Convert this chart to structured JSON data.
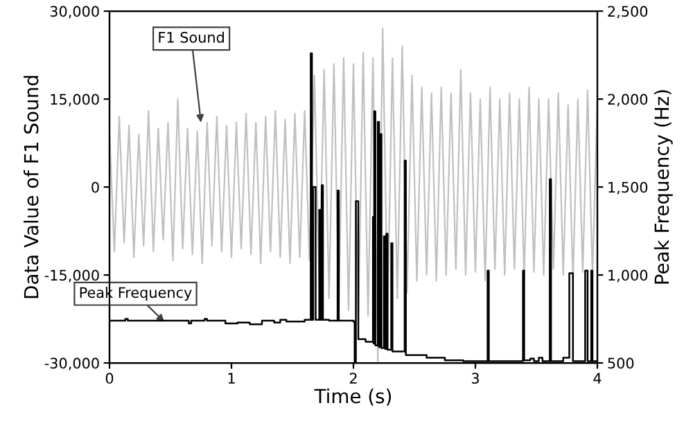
{
  "chart_data": {
    "type": "line",
    "xlabel": "Time (s)",
    "ylabel": "Data Value of F1 Sound",
    "y2label": "Peak Frequency (Hz)",
    "xlim": [
      0,
      4
    ],
    "xticks": [
      0,
      1,
      2,
      3,
      4
    ],
    "ylim": [
      -30000,
      30000
    ],
    "yticks": [
      {
        "value": -30000,
        "label": "-30,000"
      },
      {
        "value": -15000,
        "label": "-15,000"
      },
      0,
      {
        "value": 15000,
        "label": "15,000"
      },
      {
        "value": 30000,
        "label": "30,000"
      }
    ],
    "y2lim": [
      500,
      2500
    ],
    "y2ticks": [
      500,
      {
        "value": 1000,
        "label": "1,000"
      },
      {
        "value": 1500,
        "label": "1,500"
      },
      {
        "value": 2000,
        "label": "2,000"
      },
      {
        "value": 2500,
        "label": "2,500"
      }
    ],
    "grid": false,
    "legend": false,
    "series": [
      {
        "axis": "y",
        "color": "#c0c0c0",
        "x": [
          0,
          0.04,
          0.08,
          0.12,
          0.16,
          0.2,
          0.24,
          0.28,
          0.32,
          0.36,
          0.4,
          0.44,
          0.48,
          0.52,
          0.56,
          0.6,
          0.64,
          0.68,
          0.72,
          0.76,
          0.8,
          0.84,
          0.88,
          0.92,
          0.96,
          1.0,
          1.04,
          1.08,
          1.12,
          1.16,
          1.2,
          1.24,
          1.28,
          1.32,
          1.36,
          1.4,
          1.44,
          1.48,
          1.52,
          1.56,
          1.6,
          1.64,
          1.68,
          1.72,
          1.76,
          1.8,
          1.84,
          1.88,
          1.92,
          1.96,
          2.0,
          2.04,
          2.08,
          2.12,
          2.16,
          2.2,
          2.24,
          2.28,
          2.32,
          2.36,
          2.4,
          2.44,
          2.48,
          2.52,
          2.56,
          2.6,
          2.64,
          2.68,
          2.72,
          2.76,
          2.8,
          2.84,
          2.88,
          2.92,
          2.96,
          3.0,
          3.04,
          3.08,
          3.12,
          3.16,
          3.2,
          3.24,
          3.28,
          3.32,
          3.36,
          3.4,
          3.44,
          3.48,
          3.52,
          3.56,
          3.6,
          3.64,
          3.68,
          3.72,
          3.76,
          3.8,
          3.84,
          3.88,
          3.92,
          3.96,
          4.0
        ],
        "values": [
          9000,
          -11000,
          12000,
          -9500,
          10500,
          -12000,
          9000,
          -10000,
          13000,
          -11000,
          10000,
          -9000,
          11000,
          -12500,
          15000,
          -10500,
          10000,
          -11500,
          9500,
          -13000,
          11000,
          -10000,
          12000,
          -11000,
          10500,
          -12000,
          11000,
          -10500,
          12500,
          -11500,
          11000,
          -13000,
          12000,
          -11000,
          13000,
          -12000,
          11500,
          -13000,
          12500,
          -12000,
          13000,
          -12500,
          19000,
          -17000,
          20000,
          -19000,
          21000,
          -20000,
          22000,
          -21000,
          21000,
          -23000,
          23000,
          -22000,
          22000,
          -30000,
          27000,
          -21000,
          22000,
          -19000,
          24000,
          -18000,
          19000,
          -16000,
          17000,
          -15000,
          16000,
          -16000,
          17000,
          -15000,
          16000,
          -14000,
          20000,
          -15000,
          16000,
          -14500,
          15000,
          -16000,
          17000,
          -14000,
          15000,
          -15000,
          16000,
          -14000,
          15000,
          -15500,
          17000,
          -14500,
          15000,
          -15000,
          15000,
          -14000,
          16000,
          -15000,
          14000,
          -16000,
          15000,
          -14500,
          16500,
          -15000,
          15000
        ]
      },
      {
        "type": "step",
        "axis": "y2",
        "color": "#000000",
        "x": [
          0,
          0.13,
          0.15,
          0.65,
          0.67,
          0.78,
          0.8,
          0.95,
          1.05,
          1.15,
          1.25,
          1.35,
          1.4,
          1.45,
          1.6,
          1.65,
          1.66,
          1.67,
          1.69,
          1.72,
          1.73,
          1.74,
          1.75,
          1.8,
          1.87,
          1.88,
          2.0,
          2.01,
          2.02,
          2.04,
          2.1,
          2.16,
          2.165,
          2.17,
          2.18,
          2.2,
          2.21,
          2.22,
          2.23,
          2.25,
          2.26,
          2.27,
          2.28,
          2.31,
          2.32,
          2.42,
          2.43,
          2.6,
          2.75,
          2.9,
          3.1,
          3.11,
          3.39,
          3.4,
          3.45,
          3.48,
          3.52,
          3.55,
          3.61,
          3.62,
          3.72,
          3.77,
          3.8,
          3.9,
          3.92,
          3.95,
          3.96,
          4.0
        ],
        "values": [
          740,
          750,
          740,
          725,
          740,
          750,
          740,
          725,
          730,
          720,
          740,
          730,
          745,
          735,
          745,
          2260,
          745,
          1500,
          745,
          1370,
          745,
          1510,
          745,
          740,
          1480,
          740,
          735,
          500,
          1420,
          635,
          620,
          1330,
          610,
          1930,
          600,
          1870,
          590,
          1800,
          585,
          1220,
          580,
          1235,
          575,
          1180,
          565,
          1650,
          545,
          530,
          515,
          510,
          1025,
          510,
          1025,
          515,
          525,
          510,
          530,
          510,
          1545,
          510,
          530,
          1010,
          510,
          1025,
          510,
          1025,
          510,
          510
        ]
      }
    ],
    "annotations": [
      {
        "text": "F1 Sound",
        "x": 0.75,
        "y": 11000
      },
      {
        "text": "Peak Frequency",
        "x": 0.45,
        "y": -23000
      }
    ]
  }
}
